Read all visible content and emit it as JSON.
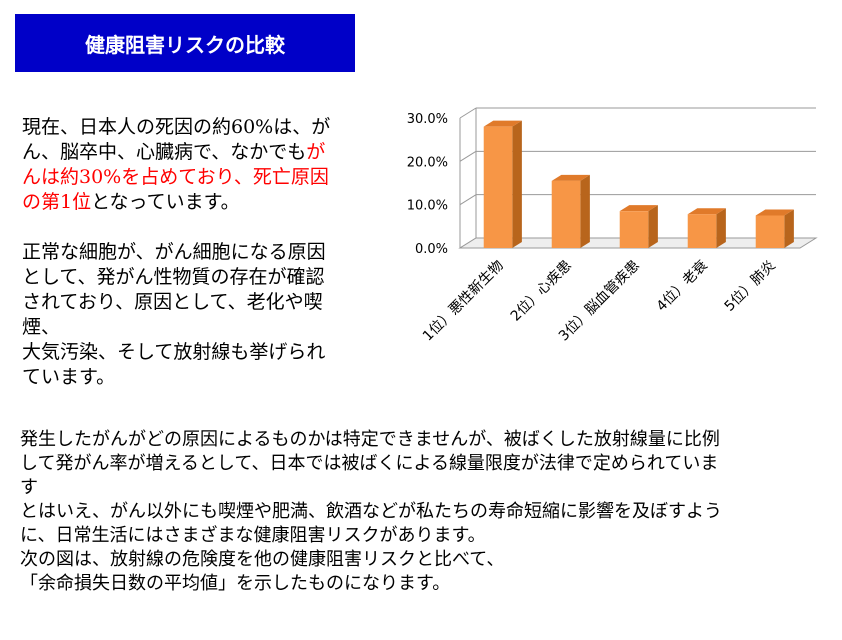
{
  "header": {
    "title": "健康阻害リスクの比較"
  },
  "left_text": {
    "para1_lines": [
      [
        {
          "t": "現在、日本人の死因の約60%は、が",
          "red": false
        }
      ],
      [
        {
          "t": "ん、脳卒中、心臓病で、なかでも",
          "red": false
        },
        {
          "t": "が",
          "red": true
        }
      ],
      [
        {
          "t": "んは約30%を占めており、死亡原因",
          "red": true
        }
      ],
      [
        {
          "t": "の第1位",
          "red": true
        },
        {
          "t": "となっています。",
          "red": false
        }
      ]
    ],
    "para2_lines": [
      "正常な細胞が、がん細胞になる原因",
      "として、発がん性物質の存在が確認",
      "されており、原因として、老化や喫煙、",
      "大気汚染、そして放射線も挙げられ",
      "ています。"
    ]
  },
  "bottom_text": {
    "lines": [
      "発生したがんがどの原因によるものかは特定できませんが、被ばくした放射線量に比例",
      "して発がん率が増えるとして、日本では被ばくによる線量限度が法律で定められていま",
      "す",
      "とはいえ、がん以外にも喫煙や肥満、飲酒などが私たちの寿命短縮に影響を及ぼすよう",
      "に、日常生活にはさまざまな健康阻害リスクがあります。",
      "次の図は、放射線の危険度を他の健康阻害リスクと比べて、",
      "「余命損失日数の平均値」を示したものになります。"
    ]
  },
  "chart_data": {
    "type": "bar",
    "categories": [
      "1位）悪性新生物",
      "2位）心疾患",
      "3位）脳血管疾患",
      "4位）老衰",
      "5位）肺炎"
    ],
    "values": [
      28.0,
      15.5,
      8.5,
      7.8,
      7.5
    ],
    "yticks": [
      "0.0%",
      "10.0%",
      "20.0%",
      "30.0%"
    ],
    "ylim": [
      0,
      30
    ],
    "grid": true,
    "style": "3d-column",
    "bar_color": "#f79646",
    "bar_side_color": "#b8651c",
    "bar_top_color": "#e07a2a"
  }
}
